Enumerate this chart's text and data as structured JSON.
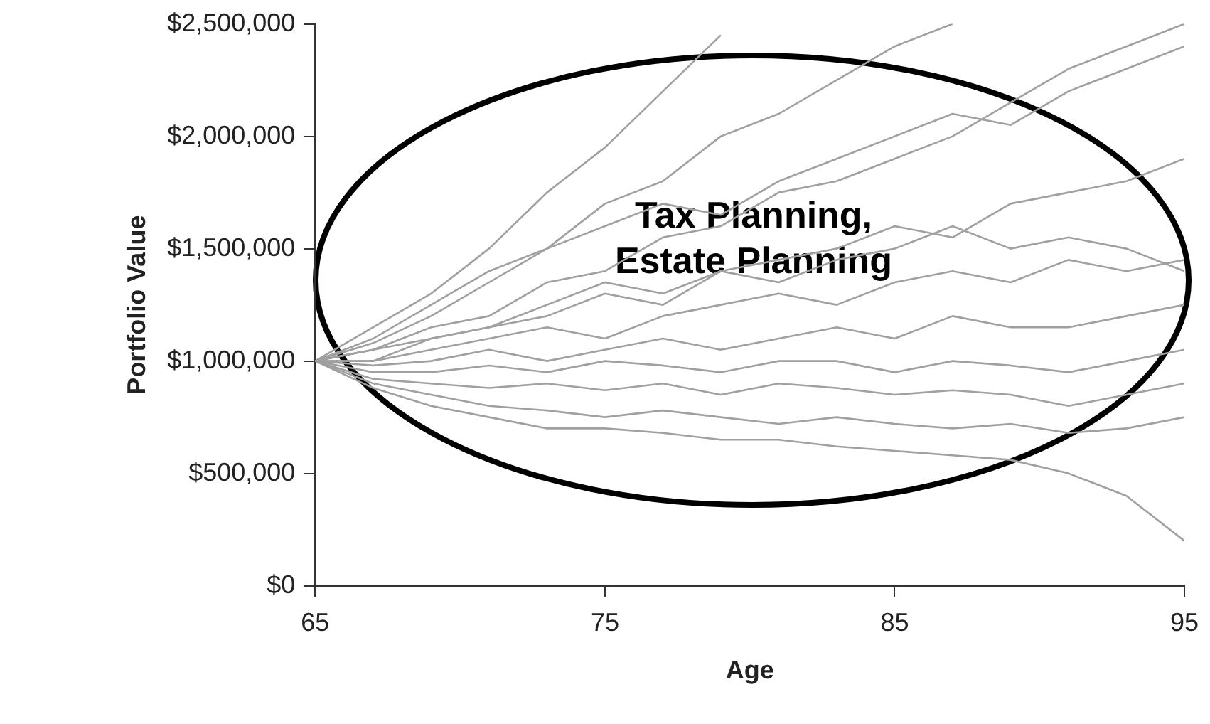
{
  "chart_data": {
    "type": "line",
    "xlabel": "Age",
    "ylabel": "Portfolio Value",
    "x": [
      65,
      67,
      69,
      71,
      73,
      75,
      77,
      79,
      81,
      83,
      85,
      87,
      89,
      91,
      93,
      95
    ],
    "xlim": [
      65,
      95
    ],
    "xticks": [
      65,
      75,
      85,
      95
    ],
    "ylim": [
      0,
      2500000
    ],
    "yticks": [
      {
        "value": 0,
        "label": "$0"
      },
      {
        "value": 500000,
        "label": "$500,000"
      },
      {
        "value": 1000000,
        "label": "$1,000,000"
      },
      {
        "value": 1500000,
        "label": "$1,500,000"
      },
      {
        "value": 2000000,
        "label": "$2,000,000"
      },
      {
        "value": 2500000,
        "label": "$2,500,000"
      }
    ],
    "grid": false,
    "legend": false,
    "annotations": [
      "Tax Planning, Estate Planning"
    ],
    "series": [
      {
        "color": "#a0a0a0",
        "values": [
          1000000,
          1150000,
          1300000,
          1500000,
          1750000,
          1950000,
          2200000,
          2450000,
          null,
          null,
          null,
          null,
          null,
          null,
          null,
          null
        ]
      },
      {
        "color": "#a0a0a0",
        "values": [
          1000000,
          1100000,
          1250000,
          1400000,
          1500000,
          1700000,
          1800000,
          2000000,
          2100000,
          2250000,
          2400000,
          2500000,
          null,
          null,
          null,
          null
        ]
      },
      {
        "color": "#a0a0a0",
        "values": [
          1000000,
          1050000,
          1150000,
          1200000,
          1350000,
          1400000,
          1550000,
          1600000,
          1750000,
          1800000,
          1900000,
          2000000,
          2150000,
          2300000,
          2400000,
          2500000
        ]
      },
      {
        "color": "#a0a0a0",
        "values": [
          1000000,
          1050000,
          1100000,
          1150000,
          1200000,
          1300000,
          1250000,
          1400000,
          1450000,
          1500000,
          1600000,
          1550000,
          1700000,
          1750000,
          1800000,
          1900000
        ]
      },
      {
        "color": "#a0a0a0",
        "values": [
          1000000,
          1000000,
          1050000,
          1100000,
          1150000,
          1100000,
          1200000,
          1250000,
          1300000,
          1250000,
          1350000,
          1400000,
          1350000,
          1450000,
          1400000,
          1450000
        ]
      },
      {
        "color": "#a0a0a0",
        "values": [
          1000000,
          980000,
          1000000,
          1050000,
          1000000,
          1050000,
          1100000,
          1050000,
          1100000,
          1150000,
          1100000,
          1200000,
          1150000,
          1150000,
          1200000,
          1250000
        ]
      },
      {
        "color": "#a0a0a0",
        "values": [
          1000000,
          950000,
          950000,
          980000,
          950000,
          1000000,
          980000,
          950000,
          1000000,
          1000000,
          950000,
          1000000,
          980000,
          950000,
          1000000,
          1050000
        ]
      },
      {
        "color": "#a0a0a0",
        "values": [
          1000000,
          920000,
          900000,
          880000,
          900000,
          870000,
          900000,
          850000,
          900000,
          880000,
          850000,
          870000,
          850000,
          800000,
          850000,
          900000
        ]
      },
      {
        "color": "#a0a0a0",
        "values": [
          1000000,
          900000,
          850000,
          800000,
          780000,
          750000,
          780000,
          750000,
          720000,
          750000,
          720000,
          700000,
          720000,
          680000,
          700000,
          750000
        ]
      },
      {
        "color": "#a0a0a0",
        "values": [
          1000000,
          880000,
          800000,
          750000,
          700000,
          700000,
          680000,
          650000,
          650000,
          620000,
          600000,
          580000,
          560000,
          500000,
          400000,
          200000
        ]
      },
      {
        "color": "#a0a0a0",
        "values": [
          1000000,
          1080000,
          1200000,
          1350000,
          1500000,
          1600000,
          1700000,
          1650000,
          1800000,
          1900000,
          2000000,
          2100000,
          2050000,
          2200000,
          2300000,
          2400000
        ]
      },
      {
        "color": "#a0a0a0",
        "values": [
          1000000,
          1000000,
          1100000,
          1150000,
          1250000,
          1350000,
          1300000,
          1400000,
          1350000,
          1450000,
          1500000,
          1600000,
          1500000,
          1550000,
          1500000,
          1400000
        ]
      }
    ]
  }
}
